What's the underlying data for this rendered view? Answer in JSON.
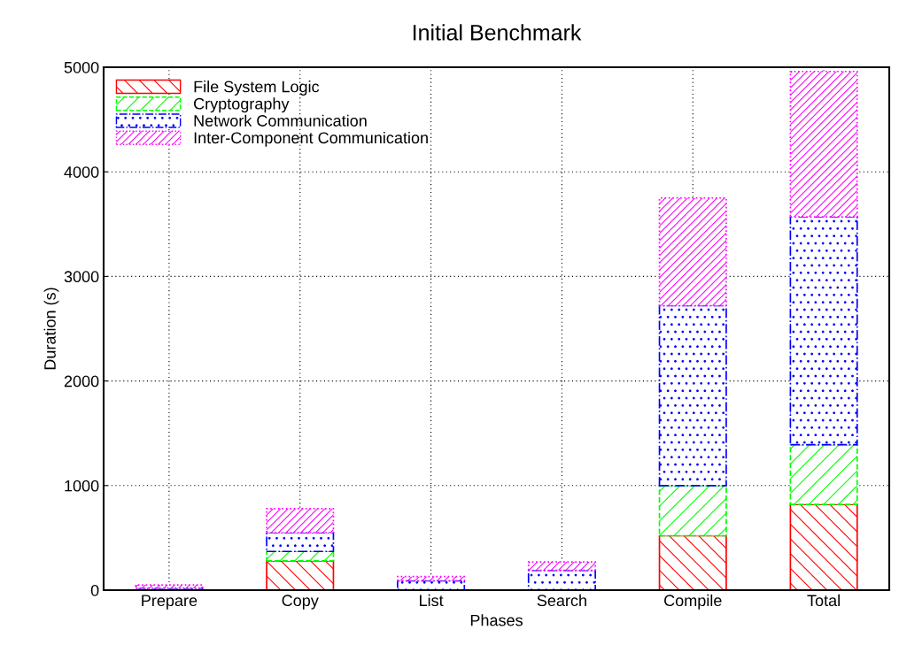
{
  "chart_data": {
    "type": "bar",
    "title": "Initial Benchmark",
    "xlabel": "Phases",
    "ylabel": "Duration (s)",
    "stacked": true,
    "categories": [
      "Prepare",
      "Copy",
      "List",
      "Search",
      "Compile",
      "Total"
    ],
    "series": [
      {
        "name": "File System Logic",
        "color": "#ff0000",
        "values": [
          null,
          280,
          0,
          0,
          520,
          820
        ]
      },
      {
        "name": "Cryptography",
        "color": "#00ff00",
        "values": [
          null,
          90,
          0,
          0,
          480,
          570
        ]
      },
      {
        "name": "Network Communication",
        "color": "#0000ff",
        "values": [
          20,
          180,
          90,
          190,
          1720,
          2180
        ]
      },
      {
        "name": "Inter-Component Communication",
        "color": "#ff00ff",
        "values": [
          30,
          230,
          40,
          80,
          1030,
          1390
        ]
      }
    ],
    "ylim": [
      0,
      5000
    ],
    "yticks": [
      0,
      1000,
      2000,
      3000,
      4000,
      5000
    ],
    "grid": true,
    "legend": "top left"
  }
}
